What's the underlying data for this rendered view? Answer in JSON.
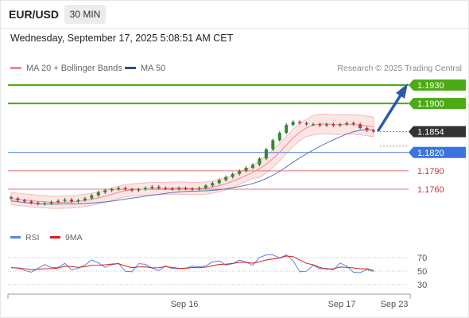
{
  "header": {
    "symbol": "EUR/USD",
    "timeframe": "30 MIN"
  },
  "datetime": "Wednesday, September 17, 2025 5:08:51 AM CET",
  "legend": {
    "ma20": "MA 20 + Bollinger Bands",
    "ma50": "MA 50",
    "copyright": "Research © 2025 Trading Central"
  },
  "rsi_legend": {
    "rsi": "RSI",
    "ma": "9MA"
  },
  "colors": {
    "resistance": "#4caa14",
    "support": "#4a78d6",
    "minor_support": "#e87070",
    "current": "#333333",
    "arrow": "#2a5aa8",
    "candle_up": "#2e8b2e",
    "candle_down": "#cc2f2f",
    "bollinger_fill": "#fadcdc",
    "ma20": "#f08a8a",
    "ma50": "#5577bb",
    "rsi": "#5b84d8",
    "rsi_ma": "#d42020"
  },
  "levels": [
    {
      "id": "r2",
      "value": "1.1930",
      "kind": "resistance"
    },
    {
      "id": "r1",
      "value": "1.1900",
      "kind": "resistance"
    },
    {
      "id": "cur",
      "value": "1.1854",
      "kind": "current"
    },
    {
      "id": "s1",
      "value": "1.1820",
      "kind": "support"
    },
    {
      "id": "s2",
      "value": "1.1790",
      "kind": "minor_support"
    },
    {
      "id": "s3",
      "value": "1.1760",
      "kind": "minor_support"
    }
  ],
  "rsi_axis": [
    "70",
    "50",
    "30"
  ],
  "x_axis": [
    "Sep 16",
    "Sep 17",
    "Sep 23"
  ],
  "chart_data": {
    "type": "candlestick",
    "title": "EUR/USD",
    "timeframe": "30 MIN",
    "price_levels": [
      1.193,
      1.19,
      1.1854,
      1.182,
      1.179,
      1.176
    ],
    "close_series": [
      1.1745,
      1.1742,
      1.174,
      1.1738,
      1.1736,
      1.1737,
      1.1739,
      1.1741,
      1.1743,
      1.174,
      1.1742,
      1.1745,
      1.175,
      1.1755,
      1.1758,
      1.176,
      1.1762,
      1.176,
      1.1758,
      1.176,
      1.1762,
      1.1764,
      1.1762,
      1.1761,
      1.176,
      1.1762,
      1.1761,
      1.176,
      1.1762,
      1.1766,
      1.177,
      1.1775,
      1.178,
      1.1785,
      1.179,
      1.1795,
      1.18,
      1.181,
      1.1825,
      1.184,
      1.1852,
      1.1865,
      1.187,
      1.1868,
      1.1866,
      1.1866,
      1.1864,
      1.1866,
      1.1864,
      1.1866,
      1.1868,
      1.1866,
      1.186,
      1.1856,
      1.1854
    ],
    "rsi_levels": [
      70,
      50,
      30
    ],
    "x_labels": [
      "Sep 16",
      "Sep 17",
      "Sep 23"
    ]
  }
}
